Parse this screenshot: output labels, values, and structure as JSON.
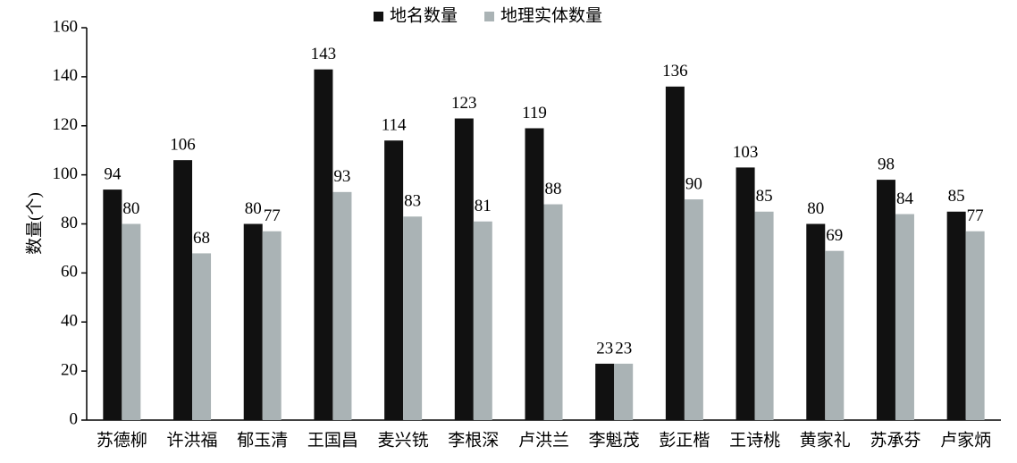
{
  "chart_data": {
    "type": "bar",
    "y_label": "数量(个)",
    "categories": [
      "苏德柳",
      "许洪福",
      "郁玉清",
      "王国昌",
      "麦兴铣",
      "李根深",
      "卢洪兰",
      "李魁茂",
      "彭正楷",
      "王诗桃",
      "黄家礼",
      "苏承芬",
      "卢家炳"
    ],
    "series": [
      {
        "name": "地名数量",
        "color": "#111111",
        "values": [
          94,
          106,
          80,
          143,
          114,
          123,
          119,
          23,
          136,
          103,
          80,
          98,
          85
        ]
      },
      {
        "name": "地理实体数量",
        "color": "#aab3b5",
        "values": [
          80,
          68,
          77,
          93,
          83,
          81,
          88,
          23,
          90,
          85,
          69,
          84,
          77
        ]
      }
    ],
    "ylim": [
      0,
      160
    ],
    "yticks": [
      0,
      20,
      40,
      60,
      80,
      100,
      120,
      140,
      160
    ],
    "legend": "top"
  }
}
